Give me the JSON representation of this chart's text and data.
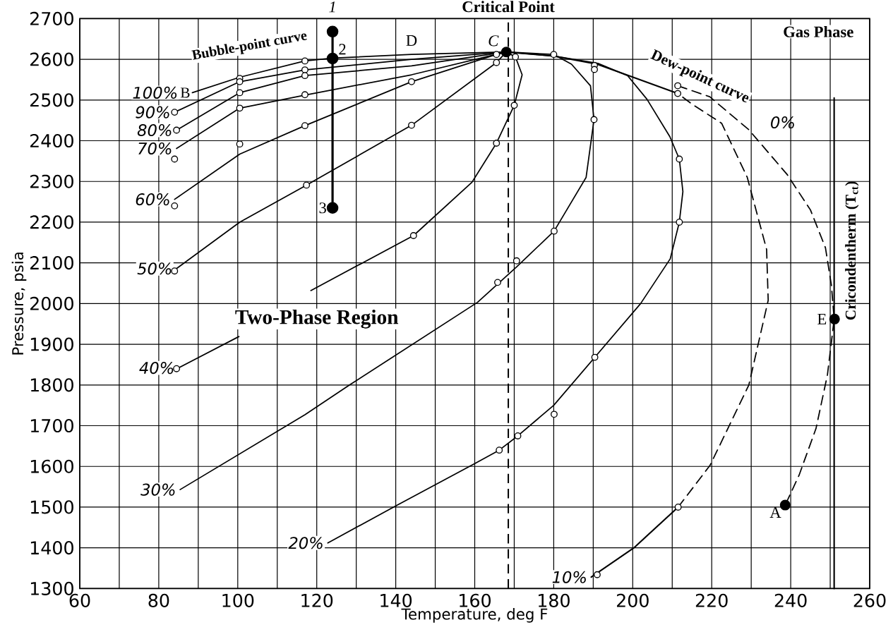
{
  "chart_data": {
    "type": "line",
    "xlabel": "Temperature, deg F",
    "ylabel": "Pressure, psia",
    "xlim": [
      60,
      260
    ],
    "ylim": [
      1300,
      2700
    ],
    "xticks": [
      60,
      80,
      100,
      120,
      140,
      160,
      180,
      200,
      220,
      240,
      260
    ],
    "yticks": [
      1300,
      1400,
      1500,
      1600,
      1700,
      1800,
      1900,
      2000,
      2100,
      2200,
      2300,
      2400,
      2500,
      2600,
      2700
    ],
    "grid": true,
    "series": [
      {
        "name": "100%",
        "color": "#000000",
        "x": [
          88.5,
          100.5,
          117,
          124,
          144,
          168
        ],
        "values": [
          2518,
          2556,
          2596,
          2603,
          2612,
          2618
        ]
      },
      {
        "name": "90%",
        "color": "#000000",
        "x": [
          84,
          100.5,
          117,
          144,
          168
        ],
        "values": [
          2470,
          2545,
          2574,
          2600,
          2618
        ]
      },
      {
        "name": "80%",
        "color": "#000000",
        "x": [
          84.5,
          100.5,
          117,
          144,
          168
        ],
        "values": [
          2426,
          2518,
          2560,
          2584,
          2618
        ]
      },
      {
        "name": "70%",
        "color": "#000000",
        "x": [
          84.5,
          100.5,
          117,
          144,
          168
        ],
        "values": [
          2381,
          2480,
          2512,
          2562,
          2618
        ]
      },
      {
        "name": "60%",
        "color": "#000000",
        "x": [
          84,
          100.5,
          117,
          144,
          165.5,
          168
        ],
        "values": [
          2256,
          2367,
          2437,
          2545,
          2612,
          2618
        ]
      },
      {
        "name": "50%",
        "color": "#000000",
        "x": [
          84.5,
          100.5,
          117.4,
          144,
          165.5,
          168
        ],
        "values": [
          2086,
          2200,
          2291,
          2438,
          2592,
          2618
        ]
      },
      {
        "name": "40%",
        "color": "#000000",
        "x": [
          85,
          100.3,
          110,
          118.5,
          144.5,
          159.3,
          165.5,
          168.5,
          170,
          172,
          170.3,
          168
        ],
        "values": [
          1842,
          1919,
          null,
          2032,
          2167,
          2298,
          2394,
          2456,
          2487,
          2562,
          2606,
          2618
        ]
      },
      {
        "name": "30%",
        "color": "#000000",
        "x": [
          85.4,
          117,
          128.3,
          160.7,
          170.6,
          180.1,
          188.2,
          190.2,
          189.3,
          184.5,
          180,
          168
        ],
        "values": [
          1543,
          1727,
          1800,
          2003,
          2090,
          2178,
          2310,
          2452,
          2535,
          2588,
          2612,
          2618
        ]
      },
      {
        "name": "20%",
        "color": "#000000",
        "x": [
          122.8,
          140,
          160,
          166.2,
          170.9,
          180,
          190.4,
          202,
          209.5,
          211.8,
          212.7,
          211.8,
          209.4,
          203.6,
          198.7,
          191.2,
          180,
          168
        ],
        "values": [
          1412,
          1503,
          1607,
          1640,
          1675,
          1750,
          1868,
          2000,
          2110,
          2200,
          2275,
          2355,
          2410,
          2502,
          2560,
          2590,
          2608,
          2618
        ]
      },
      {
        "name": "10%",
        "color": "#000000",
        "x": [
          189.5,
          200.3,
          211.5,
          null,
          211.4,
          199,
          191,
          180,
          168
        ],
        "values": [
          1328,
          1400,
          1500,
          null,
          2516,
          2560,
          2588,
          2608,
          2618
        ]
      },
      {
        "color": "#000000",
        "line_style": "dashed",
        "x": [
          211.5,
          219.6,
          229.4,
          234.3,
          233.9,
          229,
          222.5,
          215.3,
          211.4
        ],
        "values": [
          1500,
          1603,
          1800,
          2008,
          2133,
          2310,
          2443,
          2488,
          2516
        ]
      },
      {
        "name": "0%",
        "color": "#000000",
        "line_style": "dashed",
        "x": [
          211.4,
          219.5,
          229.4,
          239.1,
          245,
          248.8,
          250.3,
          251,
          249.3,
          246.4,
          242.1,
          238.6
        ],
        "values": [
          2535,
          2508,
          2427,
          2317,
          2230,
          2137,
          2045,
          1962,
          1825,
          1693,
          1578,
          1505
        ]
      },
      {
        "color": "#000000",
        "marker": "circle",
        "x": [
          124,
          124,
          124
        ],
        "values": [
          2668,
          2602,
          2235
        ]
      },
      {
        "name": "Cricondentherm (T$_{ct}$)",
        "color": "#000000",
        "x": [
          251,
          251
        ],
        "values": [
          2505,
          1300
        ]
      },
      {
        "type": "scatter",
        "color": "#000000",
        "marker": "circle",
        "x": [
          100.5,
          117,
          84,
          100.5,
          117,
          84.5,
          100.5,
          117,
          84,
          100.5,
          117,
          84,
          100.5,
          117,
          144,
          165.5,
          84,
          117.4,
          144,
          165.5,
          84.5,
          144.5,
          165.5,
          170,
          170.3,
          165.8,
          170.6,
          180.1,
          190.2,
          180,
          166.2,
          170.9,
          180.1,
          190.4,
          211.8,
          211.8,
          191,
          211.5,
          211.4,
          211.4,
          190.3,
          190.3
        ],
        "values": [
          2553,
          2596,
          2470,
          2545,
          2574,
          2426,
          2518,
          2560,
          2355,
          2480,
          2513,
          2240,
          2392,
          2437,
          2545,
          2612,
          2080,
          2291,
          2438,
          2592,
          1840,
          2167,
          2394,
          2487,
          2606,
          2052,
          2105,
          2178,
          2452,
          2612,
          1640,
          1675,
          1728,
          1868,
          2200,
          2355,
          1334,
          1500,
          2516,
          2535,
          2585,
          2575
        ]
      },
      {
        "type": "scatter",
        "color": "#000000",
        "marker": "circle",
        "x": [
          168,
          238.6,
          251.1
        ],
        "values": [
          2618,
          1505,
          1962
        ]
      }
    ],
    "ref_lines": [
      {
        "axis": "x",
        "value": 168.5,
        "line_style": "dashed"
      }
    ],
    "annotations": [
      "Critical Point",
      "Gas Phase",
      "Bubble-point  curve",
      "Dew-point curve",
      "Two-Phase Region",
      "1",
      {
        "text": "2",
        "x": 124,
        "y": 2602
      },
      {
        "text": "3",
        "x": 124,
        "y": 2235
      },
      {
        "text": "A",
        "x": 238.6,
        "y": 1505
      },
      {
        "text": "B",
        "x": 88.5,
        "y": 2518
      },
      {
        "text": "C",
        "x": 168,
        "y": 2618
      },
      {
        "text": "D",
        "x": 144,
        "y": 2612
      },
      {
        "text": "E",
        "x": 251.1,
        "y": 1962
      }
    ]
  }
}
